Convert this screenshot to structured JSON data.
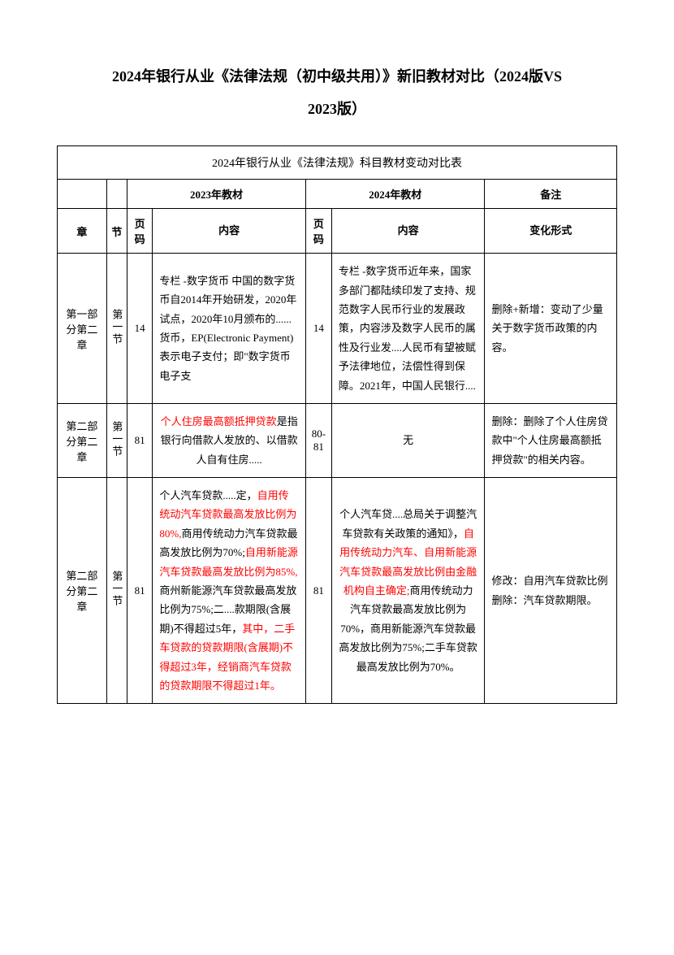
{
  "title_line1": "2024年银行从业《法律法规（初中级共用）》新旧教材对比（2024版VS",
  "title_line2": "2023版）",
  "table_caption": "2024年银行从业《法律法规》科目教材变动对比表",
  "headers": {
    "col_2023": "2023年教材",
    "col_2024": "2024年教材",
    "col_note": "备注",
    "chapter": "章",
    "section": "节",
    "page": "页码",
    "content": "内容",
    "change": "变化形式"
  },
  "rows": [
    {
      "chapter": "第一部分第二章",
      "section": "第一节",
      "page_2023": "14",
      "content_2023_parts": [
        {
          "text": "专栏 -数字货币",
          "highlight": false
        },
        {
          "text": " 中国的数字货币自2014年开始研发，2020年试点，2020年10月颁布的......货币，EP(Electronic Payment)表示电子支付；即\"数字货币电子支",
          "highlight": false
        }
      ],
      "page_2024": "14",
      "content_2024_parts": [
        {
          "text": "专栏 -数字货币",
          "highlight": false
        },
        {
          "text": "近年来，国家多部门都陆续印发了支持、规范数字人民币行业的发展政策，内容涉及数字人民币的属性及行业发....人民币有望被赋予法律地位，法偿性得到保障。2021年，中国人民银行....",
          "highlight": false
        }
      ],
      "note": "删除+新增：变动了少量关于数字货币政策的内容。"
    },
    {
      "chapter": "第二部分第二章",
      "section": "第一节",
      "page_2023": "81",
      "content_2023_parts": [
        {
          "text": "个人住房最高额抵押贷款",
          "highlight": true
        },
        {
          "text": "是指银行向借款人发放的、以借款人自有住房.....",
          "highlight": false
        }
      ],
      "content_2023_center": true,
      "page_2024": "80-81",
      "content_2024_parts": [
        {
          "text": "无",
          "highlight": false
        }
      ],
      "content_2024_center": true,
      "note": "删除：删除了个人住房贷款中\"个人住房最高额抵押贷款\"的相关内容。"
    },
    {
      "chapter": "第二部分第二章",
      "section": "第一节",
      "page_2023": "81",
      "content_2023_parts": [
        {
          "text": "个人汽车贷款.....定，",
          "highlight": false
        },
        {
          "text": "自用传统动汽车贷款最高发放比例为80%,",
          "highlight": true
        },
        {
          "text": "商用传统动力汽车贷款最高发放比例为70%;",
          "highlight": false
        },
        {
          "text": "自用新能源汽车贷款最高发放比例为85%,",
          "highlight": true
        },
        {
          "text": "商州新能源汽车贷款最高发放比例为75%;二....款期限(含展期)不得超过5年，",
          "highlight": false
        },
        {
          "text": "其中，二手车贷款的贷款期限(含展期)不得超过3年，经销商汽车贷款的贷款期限不得超过1年。",
          "highlight": true
        }
      ],
      "page_2024": "81",
      "content_2024_parts": [
        {
          "text": "个人汽车贷....总局关于调整汽车贷款有关政策的通知》，",
          "highlight": false
        },
        {
          "text": "自用传统动力汽车、自用新能源汽车贷款最高发放比例由金融机构自主确定;",
          "highlight": true
        },
        {
          "text": "商用传统动力汽车贷款最高发放比例为70%，商用新能源汽车贷款最高发放比例为75%;二手车贷款最高发放比例为70%。",
          "highlight": false
        }
      ],
      "content_2024_center": true,
      "note": "修改：自用汽车贷款比例删除：汽车贷款期限。"
    }
  ]
}
